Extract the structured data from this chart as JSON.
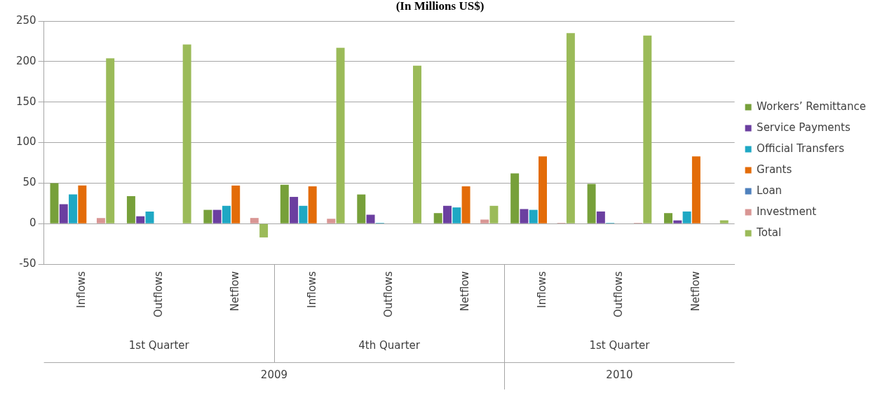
{
  "chart_data": {
    "type": "bar",
    "title": "(In Millions US$)",
    "categories": [
      "Inflows",
      "Outflows",
      "Netflow",
      "Inflows",
      "Outflows",
      "Netflow",
      "Inflows",
      "Outflows",
      "Netflow"
    ],
    "series": [
      {
        "name": "Workers’ Remittance",
        "color": "#77a03a",
        "values": [
          50,
          34,
          17,
          48,
          36,
          13,
          62,
          49,
          13
        ]
      },
      {
        "name": "Service Payments",
        "color": "#6b3fa0",
        "values": [
          24,
          9,
          17,
          33,
          11,
          22,
          18,
          15,
          4
        ]
      },
      {
        "name": "Official Transfers",
        "color": "#1fa8c4",
        "values": [
          36,
          15,
          22,
          22,
          1,
          20,
          17,
          1,
          15
        ]
      },
      {
        "name": "Grants",
        "color": "#e36c09",
        "values": [
          47,
          0,
          47,
          46,
          0,
          46,
          83,
          0,
          83
        ]
      },
      {
        "name": "Loan",
        "color": "#4f81bd",
        "values": [
          0,
          0,
          0,
          0,
          0,
          0,
          0,
          0,
          0
        ]
      },
      {
        "name": "Investment",
        "color": "#d99694",
        "values": [
          7,
          0,
          7,
          6,
          0,
          5,
          1,
          1,
          0
        ]
      },
      {
        "name": "Total",
        "color": "#9bbb59",
        "values": [
          204,
          221,
          -17,
          217,
          195,
          22,
          235,
          232,
          4
        ]
      }
    ],
    "ylim": [
      -50,
      250
    ],
    "yticks": [
      -50,
      0,
      50,
      100,
      150,
      200,
      250
    ],
    "grid": "y",
    "legend": "right",
    "annotations": [
      "1st Quarter",
      "4th Quarter",
      "1st Quarter",
      "2009",
      "2010"
    ]
  }
}
